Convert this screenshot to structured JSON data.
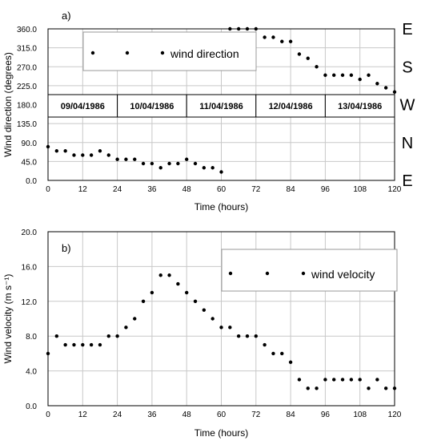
{
  "chart_data": [
    {
      "type": "scatter",
      "panel_label": "a)",
      "xlabel": "Time (hours)",
      "ylabel": "Wind direction (degrees)",
      "xlim": [
        0,
        120
      ],
      "ylim": [
        0,
        360
      ],
      "xticks": [
        "0",
        "12",
        "24",
        "36",
        "48",
        "60",
        "72",
        "84",
        "96",
        "108",
        "120"
      ],
      "yticks": [
        "0.0",
        "45.0",
        "90.0",
        "135.0",
        "180.0",
        "225.0",
        "270.0",
        "315.0",
        "360.0"
      ],
      "grid": true,
      "legend": {
        "label": "wind direction",
        "placement": "top-center"
      },
      "compass_labels": [
        "E",
        "S",
        "W",
        "N",
        "E"
      ],
      "date_labels": [
        "09/04/1986",
        "10/04/1986",
        "11/04/1986",
        "12/04/1986",
        "13/04/1986"
      ],
      "series": [
        {
          "name": "wind direction",
          "x": [
            0,
            3,
            6,
            9,
            12,
            15,
            18,
            21,
            24,
            27,
            30,
            33,
            36,
            39,
            42,
            45,
            48,
            51,
            54,
            57,
            60,
            63,
            66,
            69,
            72,
            75,
            78,
            81,
            84,
            87,
            90,
            93,
            96,
            99,
            102,
            105,
            108,
            111,
            114,
            117,
            120
          ],
          "y": [
            80,
            70,
            70,
            60,
            60,
            60,
            70,
            60,
            50,
            50,
            50,
            40,
            40,
            30,
            40,
            40,
            50,
            40,
            30,
            30,
            20,
            360,
            360,
            360,
            360,
            340,
            340,
            330,
            330,
            300,
            290,
            270,
            250,
            250,
            250,
            250,
            240,
            250,
            230,
            220,
            210
          ]
        }
      ]
    },
    {
      "type": "scatter",
      "panel_label": "b)",
      "xlabel": "Time (hours)",
      "ylabel": "Wind velocity (m s⁻¹)",
      "xlim": [
        0,
        120
      ],
      "ylim": [
        0,
        20
      ],
      "xticks": [
        "0",
        "12",
        "24",
        "36",
        "48",
        "60",
        "72",
        "84",
        "96",
        "108",
        "120"
      ],
      "yticks": [
        "0.0",
        "4.0",
        "8.0",
        "12.0",
        "16.0",
        "20.0"
      ],
      "grid": true,
      "legend": {
        "label": "wind velocity",
        "placement": "top-right"
      },
      "series": [
        {
          "name": "wind velocity",
          "x": [
            0,
            3,
            6,
            9,
            12,
            15,
            18,
            21,
            24,
            27,
            30,
            33,
            36,
            39,
            42,
            45,
            48,
            51,
            54,
            57,
            60,
            63,
            66,
            69,
            72,
            75,
            78,
            81,
            84,
            87,
            90,
            93,
            96,
            99,
            102,
            105,
            108,
            111,
            114,
            117,
            120
          ],
          "y": [
            6,
            8,
            7,
            7,
            7,
            7,
            7,
            8,
            8,
            9,
            10,
            12,
            13,
            15,
            15,
            14,
            13,
            12,
            11,
            10,
            9,
            9,
            8,
            8,
            8,
            7,
            6,
            6,
            5,
            3,
            2,
            2,
            3,
            3,
            3,
            3,
            3,
            2,
            3,
            2,
            2
          ]
        }
      ]
    }
  ]
}
